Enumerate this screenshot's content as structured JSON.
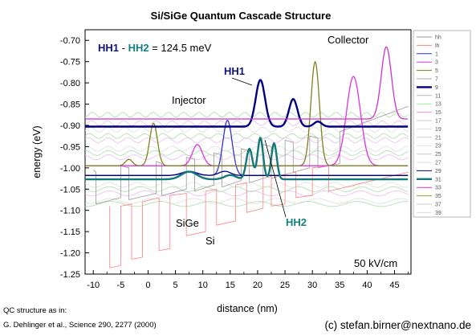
{
  "chart_data": {
    "type": "line",
    "title": "Si/SiGe Quantum Cascade Structure",
    "xlabel": "distance (nm)",
    "ylabel": "energy (eV)",
    "xlim": [
      -11.5,
      48
    ],
    "ylim": [
      -1.25,
      -0.675
    ],
    "xticks": [
      -10,
      -5,
      0,
      5,
      10,
      15,
      20,
      25,
      30,
      35,
      40,
      45
    ],
    "yticks": [
      -1.25,
      -1.2,
      -1.15,
      -1.1,
      -1.05,
      -1.0,
      -0.95,
      -0.9,
      -0.85,
      -0.8,
      -0.75,
      -0.7
    ],
    "grid": false,
    "legend_position": "right",
    "legend": [
      "hh",
      "lh",
      "1",
      "3",
      "5",
      "7",
      "9",
      "11",
      "13",
      "15",
      "17",
      "19",
      "21",
      "23",
      "25",
      "27",
      "29",
      "31",
      "33",
      "35",
      "37",
      "39"
    ],
    "legend_colors": [
      "#999999",
      "#ff8080",
      "#3333cc",
      "#dd33dd",
      "#808020",
      "#aaaaaa",
      "#000080",
      "#bbbbbb",
      "#99ee99",
      "#ee88ee",
      "#cccccc",
      "#dddddd",
      "#cccccc",
      "#dddddd",
      "#cccccc",
      "#dddddd",
      "#000080",
      "#147878",
      "#cc33cc",
      "#a0a020",
      "#cccccc",
      "#dddddd"
    ],
    "series": [
      {
        "name": "hh",
        "points": [
          [
            -10,
            -1.005
          ],
          [
            -9.5,
            -1.01
          ],
          [
            -9.5,
            -1.085
          ],
          [
            -5,
            -1.07
          ],
          [
            -5,
            -0.995
          ],
          [
            -3.5,
            -1.0
          ],
          [
            -3.5,
            -1.075
          ],
          [
            1.5,
            -1.06
          ],
          [
            1.5,
            -0.985
          ],
          [
            2.5,
            -0.99
          ],
          [
            2.5,
            -1.065
          ],
          [
            7,
            -1.05
          ],
          [
            7,
            -0.975
          ],
          [
            8.5,
            -0.98
          ],
          [
            8.5,
            -1.055
          ],
          [
            12,
            -1.04
          ],
          [
            12,
            -0.965
          ],
          [
            13.5,
            -0.97
          ],
          [
            13.5,
            -1.045
          ],
          [
            17,
            -1.03
          ],
          [
            17,
            -0.955
          ],
          [
            18.5,
            -0.96
          ],
          [
            18.5,
            -1.035
          ],
          [
            21,
            -1.025
          ],
          [
            21,
            -0.945
          ],
          [
            22.5,
            -0.95
          ],
          [
            22.5,
            -1.025
          ],
          [
            25,
            -1.015
          ],
          [
            25,
            -0.935
          ],
          [
            26.5,
            -0.94
          ],
          [
            26.5,
            -1.01
          ],
          [
            29.5,
            -1.0
          ],
          [
            29.5,
            -0.925
          ],
          [
            31,
            -0.93
          ],
          [
            31,
            -1.0
          ],
          [
            35,
            -0.99
          ],
          [
            35,
            -0.915
          ],
          [
            47.5,
            -0.855
          ]
        ]
      },
      {
        "name": "lh",
        "points": [
          [
            -7,
            -1.09
          ],
          [
            -7,
            -1.235
          ],
          [
            -5,
            -1.23
          ],
          [
            -5,
            -1.09
          ],
          [
            -3,
            -1.085
          ],
          [
            -3,
            -1.215
          ],
          [
            -1,
            -1.21
          ],
          [
            -1,
            -1.08
          ],
          [
            2,
            -1.07
          ],
          [
            2,
            -1.195
          ],
          [
            4,
            -1.19
          ],
          [
            4,
            -1.065
          ],
          [
            7,
            -1.06
          ],
          [
            7,
            -1.16
          ],
          [
            10.5,
            -1.15
          ],
          [
            10.5,
            -1.055
          ],
          [
            12.5,
            -1.05
          ],
          [
            12.5,
            -1.135
          ],
          [
            16,
            -1.125
          ],
          [
            16,
            -1.04
          ],
          [
            18,
            -1.035
          ],
          [
            18,
            -1.105
          ],
          [
            21,
            -1.095
          ],
          [
            21,
            -1.025
          ],
          [
            22.5,
            -1.02
          ],
          [
            22.5,
            -1.09
          ],
          [
            25,
            -1.085
          ],
          [
            25,
            -1.015
          ],
          [
            27,
            -1.01
          ],
          [
            27,
            -1.07
          ],
          [
            30,
            -1.065
          ],
          [
            30,
            -1.0
          ],
          [
            33,
            -0.995
          ],
          [
            33,
            -1.055
          ],
          [
            47.5,
            -1.01
          ]
        ]
      },
      {
        "name": "1",
        "level": -1.018,
        "x0": -11.5,
        "x1": 47.5,
        "peaks": [
          [
            14.5,
            0.13,
            1.2
          ],
          [
            7.5,
            0.01,
            2
          ]
        ]
      },
      {
        "name": "3",
        "level": -0.995,
        "x0": -11.5,
        "x1": 47.5,
        "peaks": [
          [
            9,
            0.05,
            1.3
          ],
          [
            37.5,
            0.21,
            1.8
          ]
        ]
      },
      {
        "name": "5",
        "level": -0.995,
        "x0": -11.5,
        "x1": 47.5,
        "peaks": [
          [
            -3.5,
            0.015,
            0.9
          ],
          [
            1,
            0.1,
            1
          ],
          [
            30.5,
            0.245,
            1.1
          ]
        ]
      },
      {
        "name": "9",
        "level": -0.903,
        "x0": -11.5,
        "x1": 47.5,
        "peaks": [
          [
            20.5,
            0.11,
            1.2
          ],
          [
            26.5,
            0.065,
            1.1
          ],
          [
            31,
            0.012,
            1
          ]
        ]
      },
      {
        "name": "29",
        "level": -1.018,
        "x0": -11.5,
        "x1": 47.5,
        "peaks": [
          [
            7.5,
            0.008,
            2
          ],
          [
            14,
            0.01,
            1.5
          ]
        ]
      },
      {
        "name": "31",
        "level": -1.027,
        "x0": -11.5,
        "x1": 47.5,
        "peaks": [
          [
            7.5,
            0.018,
            2
          ],
          [
            15,
            0.01,
            1.5
          ],
          [
            18.5,
            0.072,
            0.8
          ],
          [
            20.5,
            0.098,
            0.7
          ],
          [
            23,
            0.085,
            0.7
          ]
        ]
      },
      {
        "name": "33",
        "level": -0.885,
        "x0": -11.5,
        "x1": 47.5,
        "peaks": [
          [
            43.5,
            0.17,
            1.3
          ]
        ]
      }
    ]
  },
  "annotations": {
    "delta_hh1": "HH1",
    "delta_dash": " - ",
    "delta_hh2": "HH2",
    "delta_value": " = 124.5 meV",
    "collector": "Collector",
    "injector": "Injector",
    "hh1_label": "HH1",
    "hh2_label": "HH2",
    "sige": "SiGe",
    "si": "Si",
    "field": "50 kV/cm"
  },
  "footer": {
    "qc_line1": "QC structure as in:",
    "qc_line2": "G. Dehlinger et al., Science 290, 2277 (2000)",
    "credit": "(c) stefan.birner@nextnano.de"
  }
}
